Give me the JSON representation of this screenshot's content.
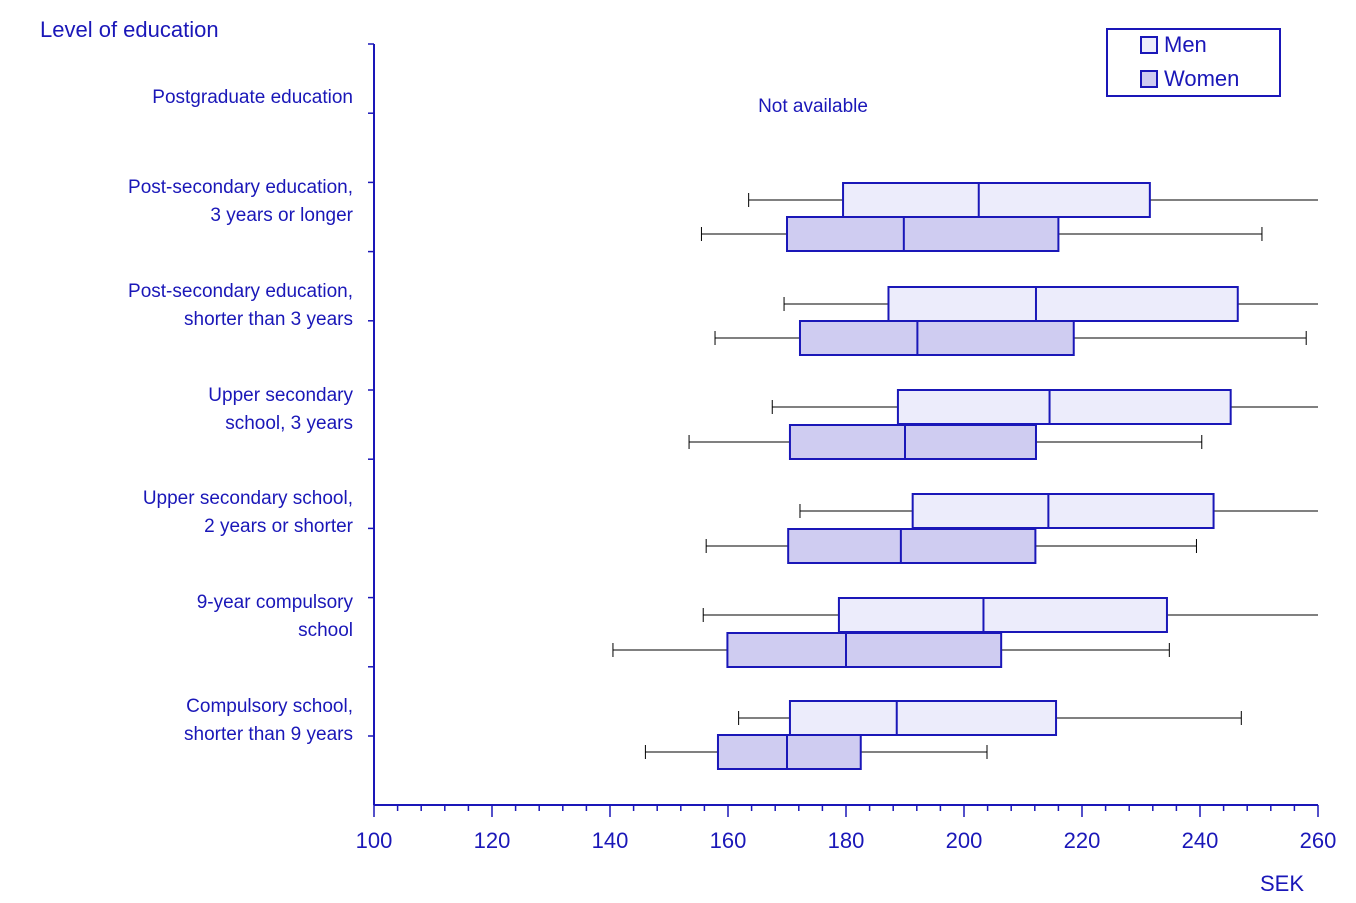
{
  "chart_data": {
    "type": "boxplot",
    "orientation": "horizontal",
    "y_axis_title": "Level of education",
    "x_axis_unit": "SEK",
    "xlim": [
      100,
      260
    ],
    "x_ticks": [
      "100",
      "120",
      "140",
      "160",
      "180",
      "200",
      "220",
      "240",
      "260"
    ],
    "legend": {
      "position": "top-right",
      "items": [
        {
          "name": "Men",
          "color": "#ececfb"
        },
        {
          "name": "Women",
          "color": "#cfccf1"
        }
      ]
    },
    "not_available_text": "Not available",
    "colors": {
      "axis": "#1a17b8",
      "text": "#1a17b8",
      "whisker": "#000000"
    },
    "categories": [
      {
        "lines": [
          "Postgraduate education"
        ],
        "available": false,
        "men": null,
        "women": null
      },
      {
        "lines": [
          "Post-secondary education,",
          "3 years or longer"
        ],
        "available": true,
        "men": {
          "whisker_low": 163.5,
          "q1": 179.5,
          "median": 202.5,
          "q3": 231.5,
          "whisker_high": 260
        },
        "women": {
          "whisker_low": 155.5,
          "q1": 170,
          "median": 189.8,
          "q3": 216,
          "whisker_high": 250.5
        }
      },
      {
        "lines": [
          "Post-secondary education,",
          "shorter than 3 years"
        ],
        "available": true,
        "men": {
          "whisker_low": 169.5,
          "q1": 187.2,
          "median": 212.2,
          "q3": 246.4,
          "whisker_high": 260
        },
        "women": {
          "whisker_low": 157.8,
          "q1": 172.2,
          "median": 192.1,
          "q3": 218.6,
          "whisker_high": 258
        }
      },
      {
        "lines": [
          "Upper secondary",
          "school, 3 years"
        ],
        "available": true,
        "men": {
          "whisker_low": 167.5,
          "q1": 188.8,
          "median": 214.5,
          "q3": 245.2,
          "whisker_high": 260
        },
        "women": {
          "whisker_low": 153.4,
          "q1": 170.5,
          "median": 190.0,
          "q3": 212.2,
          "whisker_high": 240.3
        }
      },
      {
        "lines": [
          "Upper secondary school,",
          "2 years or shorter"
        ],
        "available": true,
        "men": {
          "whisker_low": 172.2,
          "q1": 191.3,
          "median": 214.3,
          "q3": 242.3,
          "whisker_high": 260
        },
        "women": {
          "whisker_low": 156.3,
          "q1": 170.2,
          "median": 189.3,
          "q3": 212.1,
          "whisker_high": 239.4
        }
      },
      {
        "lines": [
          "9-year compulsory",
          "school"
        ],
        "available": true,
        "men": {
          "whisker_low": 155.8,
          "q1": 178.8,
          "median": 203.3,
          "q3": 234.4,
          "whisker_high": 260
        },
        "women": {
          "whisker_low": 140.5,
          "q1": 159.9,
          "median": 180.0,
          "q3": 206.3,
          "whisker_high": 234.8
        }
      },
      {
        "lines": [
          "Compulsory school,",
          "shorter than 9 years"
        ],
        "available": true,
        "men": {
          "whisker_low": 161.8,
          "q1": 170.5,
          "median": 188.6,
          "q3": 215.6,
          "whisker_high": 247.0
        },
        "women": {
          "whisker_low": 146.0,
          "q1": 158.3,
          "median": 170.0,
          "q3": 182.5,
          "whisker_high": 203.9
        }
      }
    ]
  }
}
